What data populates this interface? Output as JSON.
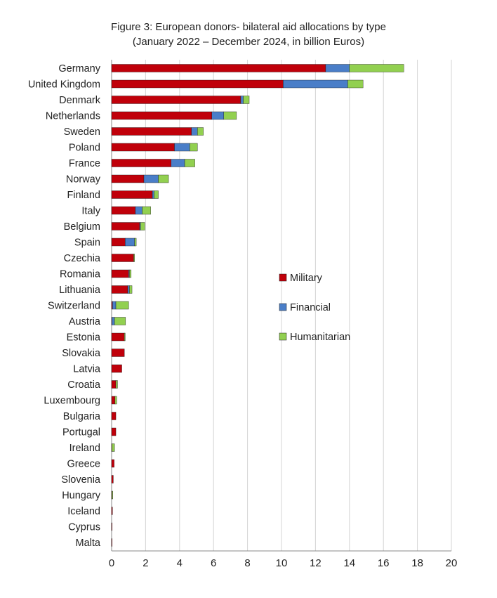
{
  "chart_data": {
    "type": "bar",
    "orientation": "horizontal",
    "stacked": true,
    "title": "Figure 3: European donors- bilateral aid allocations by type",
    "subtitle": "(January 2022 – December 2024, in billion Euros)",
    "categories": [
      "Germany",
      "United Kingdom",
      "Denmark",
      "Netherlands",
      "Sweden",
      "Poland",
      "France",
      "Norway",
      "Finland",
      "Italy",
      "Belgium",
      "Spain",
      "Czechia",
      "Romania",
      "Lithuania",
      "Switzerland",
      "Austria",
      "Estonia",
      "Slovakia",
      "Latvia",
      "Croatia",
      "Luxembourg",
      "Bulgaria",
      "Portugal",
      "Ireland",
      "Greece",
      "Slovenia",
      "Hungary",
      "Iceland",
      "Cyprus",
      "Malta"
    ],
    "series": [
      {
        "name": "Military",
        "color": "#c0000a",
        "values": [
          12.6,
          10.1,
          7.6,
          5.9,
          4.7,
          3.7,
          3.5,
          1.9,
          2.4,
          1.4,
          1.65,
          0.8,
          1.3,
          1.0,
          0.95,
          0.05,
          0.02,
          0.75,
          0.75,
          0.6,
          0.25,
          0.2,
          0.25,
          0.25,
          0.02,
          0.15,
          0.1,
          0.02,
          0.05,
          0.02,
          0.01
        ]
      },
      {
        "name": "Financial",
        "color": "#4a7ec8",
        "values": [
          1.4,
          3.8,
          0.15,
          0.7,
          0.35,
          0.9,
          0.8,
          0.85,
          0.1,
          0.4,
          0.05,
          0.55,
          0.0,
          0.05,
          0.1,
          0.2,
          0.15,
          0.0,
          0.0,
          0.0,
          0.0,
          0.0,
          0.0,
          0.0,
          0.0,
          0.0,
          0.0,
          0.0,
          0.0,
          0.0,
          0.0
        ]
      },
      {
        "name": "Humanitarian",
        "color": "#92d050",
        "values": [
          3.2,
          0.9,
          0.35,
          0.75,
          0.35,
          0.45,
          0.6,
          0.6,
          0.25,
          0.5,
          0.25,
          0.1,
          0.05,
          0.1,
          0.15,
          0.75,
          0.65,
          0.05,
          0.0,
          0.0,
          0.1,
          0.1,
          0.0,
          0.0,
          0.15,
          0.0,
          0.0,
          0.05,
          0.0,
          0.0,
          0.0
        ]
      }
    ],
    "xlim": [
      0,
      20
    ],
    "xticks": [
      "0",
      "2",
      "4",
      "6",
      "8",
      "10",
      "12",
      "14",
      "16",
      "18",
      "20"
    ],
    "grid": true,
    "legend_position": "right-center"
  }
}
